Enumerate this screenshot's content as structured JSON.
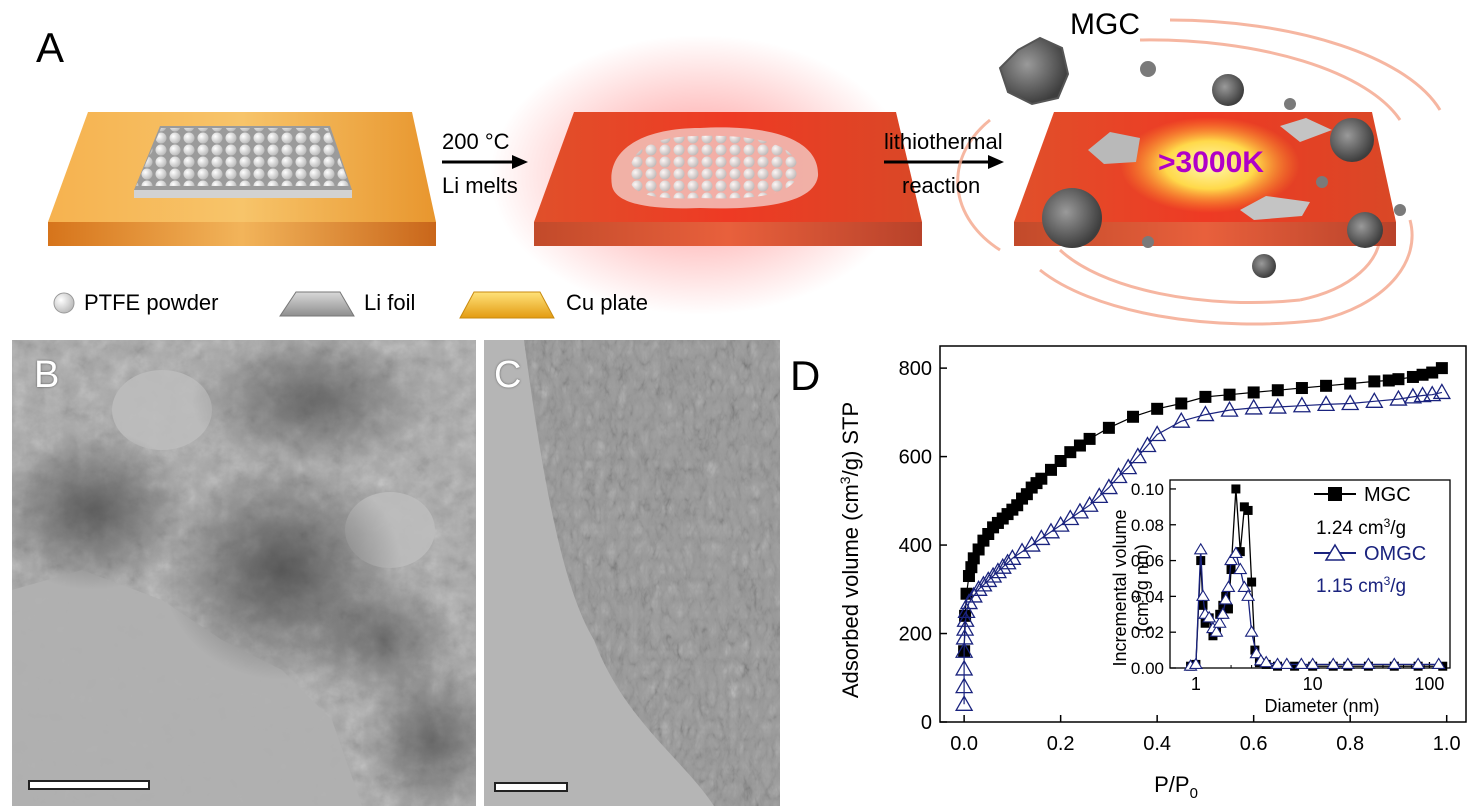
{
  "panel_labels": {
    "a": "A",
    "b": "B",
    "c": "C",
    "d": "D"
  },
  "schematic": {
    "step1_line1": "200 °C",
    "step1_line2": "Li melts",
    "step2_line1": "lithiothermal",
    "step2_line2": "reaction",
    "product_label": "MGC",
    "temperature_label": ">3000K"
  },
  "legend": {
    "ptfe": "PTFE powder",
    "li_foil": "Li foil",
    "cu_plate": "Cu plate"
  },
  "colors": {
    "mgc_series": "#000000",
    "omgc_series": "#1a237e",
    "temperature_text": "#b000c8"
  },
  "chart_data": [
    {
      "type": "scatter",
      "panel": "D-main",
      "xlabel_main": "P/P",
      "xlabel_sub": "0",
      "ylabel_parts": [
        "Adsorbed volume (cm",
        "3",
        "/g) STP"
      ],
      "xlim": [
        -0.05,
        1.04
      ],
      "ylim": [
        0,
        850
      ],
      "xticks": [
        "0.0",
        "0.2",
        "0.4",
        "0.6",
        "0.8",
        "1.0"
      ],
      "yticks": [
        "0",
        "200",
        "400",
        "600",
        "800"
      ],
      "series": [
        {
          "name": "MGC",
          "marker": "filled-square",
          "x": [
            0.0,
            0.002,
            0.005,
            0.01,
            0.015,
            0.02,
            0.03,
            0.04,
            0.05,
            0.06,
            0.07,
            0.08,
            0.09,
            0.1,
            0.11,
            0.12,
            0.13,
            0.14,
            0.15,
            0.16,
            0.18,
            0.2,
            0.22,
            0.24,
            0.26,
            0.3,
            0.35,
            0.4,
            0.45,
            0.5,
            0.55,
            0.6,
            0.65,
            0.7,
            0.75,
            0.8,
            0.85,
            0.88,
            0.9,
            0.93,
            0.95,
            0.97,
            0.99
          ],
          "y": [
            160,
            240,
            290,
            330,
            350,
            370,
            390,
            410,
            425,
            440,
            450,
            460,
            470,
            480,
            490,
            505,
            515,
            530,
            540,
            550,
            570,
            590,
            610,
            625,
            640,
            665,
            690,
            708,
            720,
            735,
            740,
            745,
            750,
            755,
            760,
            765,
            770,
            772,
            775,
            780,
            785,
            790,
            800
          ]
        },
        {
          "name": "OMGC",
          "marker": "open-triangle",
          "x": [
            0.0,
            0.0,
            0.0,
            0.0,
            0.001,
            0.002,
            0.003,
            0.005,
            0.01,
            0.02,
            0.03,
            0.04,
            0.05,
            0.06,
            0.07,
            0.08,
            0.09,
            0.1,
            0.12,
            0.14,
            0.16,
            0.18,
            0.2,
            0.22,
            0.24,
            0.26,
            0.28,
            0.3,
            0.32,
            0.34,
            0.36,
            0.38,
            0.4,
            0.45,
            0.5,
            0.55,
            0.6,
            0.65,
            0.7,
            0.75,
            0.8,
            0.85,
            0.9,
            0.93,
            0.95,
            0.97,
            0.99
          ],
          "y": [
            40,
            80,
            120,
            160,
            190,
            210,
            230,
            250,
            270,
            285,
            300,
            310,
            320,
            330,
            340,
            350,
            360,
            370,
            385,
            400,
            415,
            430,
            445,
            460,
            475,
            490,
            510,
            530,
            555,
            575,
            600,
            625,
            650,
            680,
            695,
            705,
            710,
            712,
            715,
            718,
            720,
            725,
            730,
            735,
            738,
            740,
            745
          ]
        }
      ]
    },
    {
      "type": "line",
      "panel": "D-inset",
      "xlabel": "Diameter (nm)",
      "ylabel_line1": "Incremental volume",
      "ylabel_line2_parts": [
        "(cm",
        "3",
        "/g nm)"
      ],
      "xscale": "log",
      "xlim": [
        0.6,
        150
      ],
      "ylim": [
        0,
        0.105
      ],
      "xticks": [
        "1",
        "10",
        "100"
      ],
      "yticks": [
        "0.00",
        "0.02",
        "0.04",
        "0.06",
        "0.08",
        "0.10"
      ],
      "series": [
        {
          "name": "MGC",
          "legend_value_parts": [
            "1.24 cm",
            "3",
            "/g"
          ],
          "marker": "filled-square",
          "x": [
            0.9,
            1.0,
            1.1,
            1.15,
            1.2,
            1.3,
            1.4,
            1.5,
            1.6,
            1.7,
            1.8,
            1.9,
            2.0,
            2.2,
            2.4,
            2.6,
            2.8,
            3.0,
            3.2,
            3.5,
            4.0,
            5.0,
            7.0,
            10,
            15,
            20,
            30,
            50,
            80,
            130
          ],
          "y": [
            0.001,
            0.002,
            0.06,
            0.035,
            0.025,
            0.028,
            0.018,
            0.02,
            0.03,
            0.035,
            0.04,
            0.033,
            0.055,
            0.1,
            0.065,
            0.09,
            0.088,
            0.048,
            0.01,
            0.003,
            0.002,
            0.001,
            0.001,
            0.001,
            0.001,
            0.001,
            0.001,
            0.001,
            0.001,
            0.001
          ]
        },
        {
          "name": "OMGC",
          "legend_value_parts": [
            "1.15 cm",
            "3",
            "/g"
          ],
          "marker": "open-triangle",
          "x": [
            0.9,
            1.0,
            1.1,
            1.15,
            1.2,
            1.3,
            1.4,
            1.5,
            1.6,
            1.7,
            1.8,
            1.9,
            2.0,
            2.2,
            2.4,
            2.6,
            2.8,
            3.0,
            3.3,
            3.6,
            4.0,
            5.0,
            6.0,
            8.0,
            10,
            15,
            20,
            30,
            50,
            80,
            120
          ],
          "y": [
            0.001,
            0.002,
            0.066,
            0.04,
            0.03,
            0.028,
            0.022,
            0.02,
            0.025,
            0.03,
            0.038,
            0.045,
            0.06,
            0.064,
            0.055,
            0.045,
            0.04,
            0.02,
            0.008,
            0.004,
            0.003,
            0.002,
            0.002,
            0.002,
            0.002,
            0.002,
            0.002,
            0.002,
            0.002,
            0.002,
            0.002
          ]
        }
      ]
    }
  ]
}
